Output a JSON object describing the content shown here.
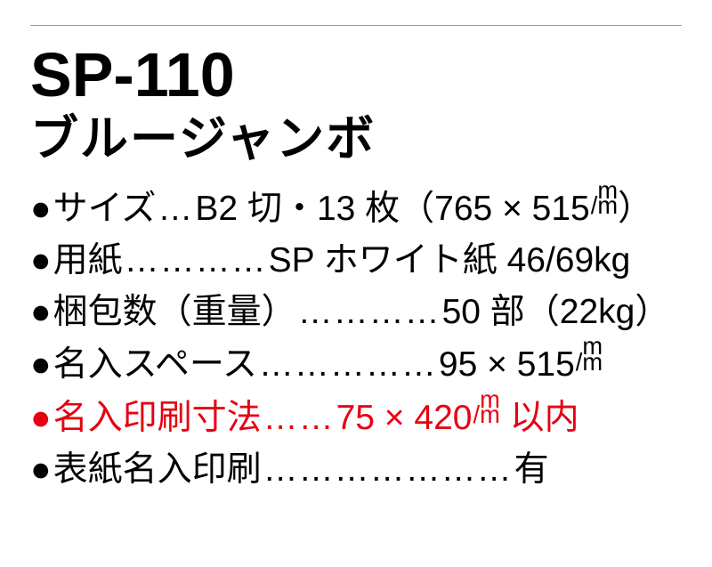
{
  "product": {
    "code": "SP-110",
    "title": "ブルージャンボ"
  },
  "specs": [
    {
      "bullet": "●",
      "label": "サイズ",
      "leader": "…",
      "value_pre": "B2 切・13 枚（765 × 515",
      "has_mm": true,
      "value_post": "）",
      "highlight": false
    },
    {
      "bullet": "●",
      "label": "用紙",
      "leader": "…………",
      "value_pre": "SP ホワイト紙 46/69kg",
      "has_mm": false,
      "value_post": "",
      "highlight": false
    },
    {
      "bullet": "●",
      "label": "梱包数（重量）",
      "leader": "…………",
      "value_pre": "50 部（22kg）",
      "has_mm": false,
      "value_post": "",
      "highlight": false
    },
    {
      "bullet": "●",
      "label": "名入スペース",
      "leader": "……………",
      "value_pre": "95 × 515",
      "has_mm": true,
      "value_post": "",
      "highlight": false
    },
    {
      "bullet": "●",
      "label": "名入印刷寸法",
      "leader": "……",
      "value_pre": "75 × 420",
      "has_mm": true,
      "value_post": " 以内",
      "highlight": true
    },
    {
      "bullet": "●",
      "label": "表紙名入印刷",
      "leader": "…………………",
      "value_pre": "有",
      "has_mm": false,
      "value_post": "",
      "highlight": false
    }
  ],
  "colors": {
    "text": "#000000",
    "highlight": "#e60012",
    "rule": "#999999",
    "background": "#ffffff"
  }
}
